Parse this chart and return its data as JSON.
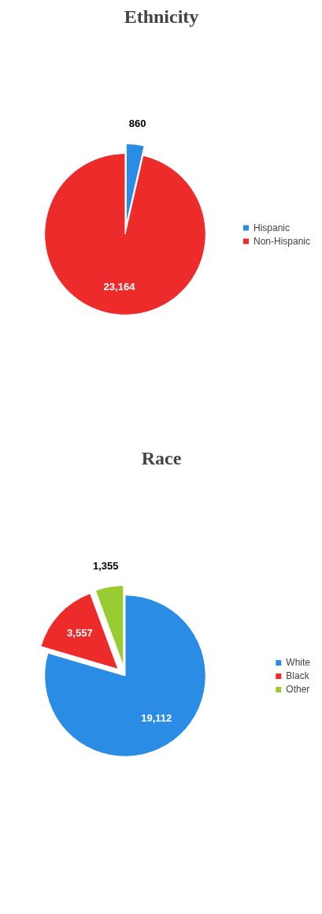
{
  "chart_data": [
    {
      "type": "pie",
      "title": "Race",
      "categories": [
        "White",
        "Black",
        "Other"
      ],
      "values": [
        19112,
        3557,
        1355
      ],
      "value_labels": [
        "19,112",
        "3,557",
        "1,355"
      ],
      "colors": [
        "#2b8ce6",
        "#ee2b2b",
        "#99cc33"
      ],
      "legend": "right"
    },
    {
      "type": "pie",
      "title": "Ethnicity",
      "categories": [
        "Hispanic",
        "Non-Hispanic"
      ],
      "values": [
        860,
        23164
      ],
      "value_labels": [
        "860",
        "23,164"
      ],
      "colors": [
        "#2b8ce6",
        "#ee2b2b"
      ],
      "legend": "right"
    }
  ]
}
